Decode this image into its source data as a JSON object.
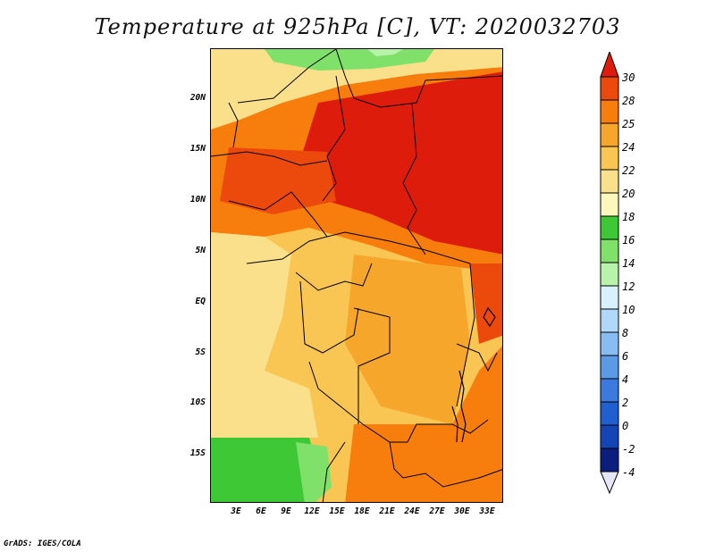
{
  "title": "Temperature at 925hPa [C], VT: 2020032703",
  "credit": "GrADS: IGES/COLA",
  "lat_labels": [
    "20N",
    "15N",
    "10N",
    "5N",
    "EQ",
    "5S",
    "10S",
    "15S"
  ],
  "lon_labels": [
    "3E",
    "6E",
    "9E",
    "12E",
    "15E",
    "18E",
    "21E",
    "24E",
    "27E",
    "30E",
    "33E"
  ],
  "colorbar": {
    "labels": [
      "30",
      "28",
      "25",
      "24",
      "22",
      "20",
      "18",
      "16",
      "14",
      "12",
      "10",
      "8",
      "6",
      "4",
      "2",
      "0",
      "-2",
      "-4"
    ],
    "colors": [
      "#dd1c0c",
      "#ec4a0c",
      "#f77d0d",
      "#f7a62c",
      "#f9c553",
      "#fbe08c",
      "#fdf7ba",
      "#3ec836",
      "#7fe06a",
      "#b7f3a8",
      "#d7f1ff",
      "#b0d8f9",
      "#86bdf2",
      "#5b9ae6",
      "#3b7be0",
      "#1f5fcf",
      "#1345b4",
      "#0b1e7e",
      "#e6e6f8"
    ]
  }
}
